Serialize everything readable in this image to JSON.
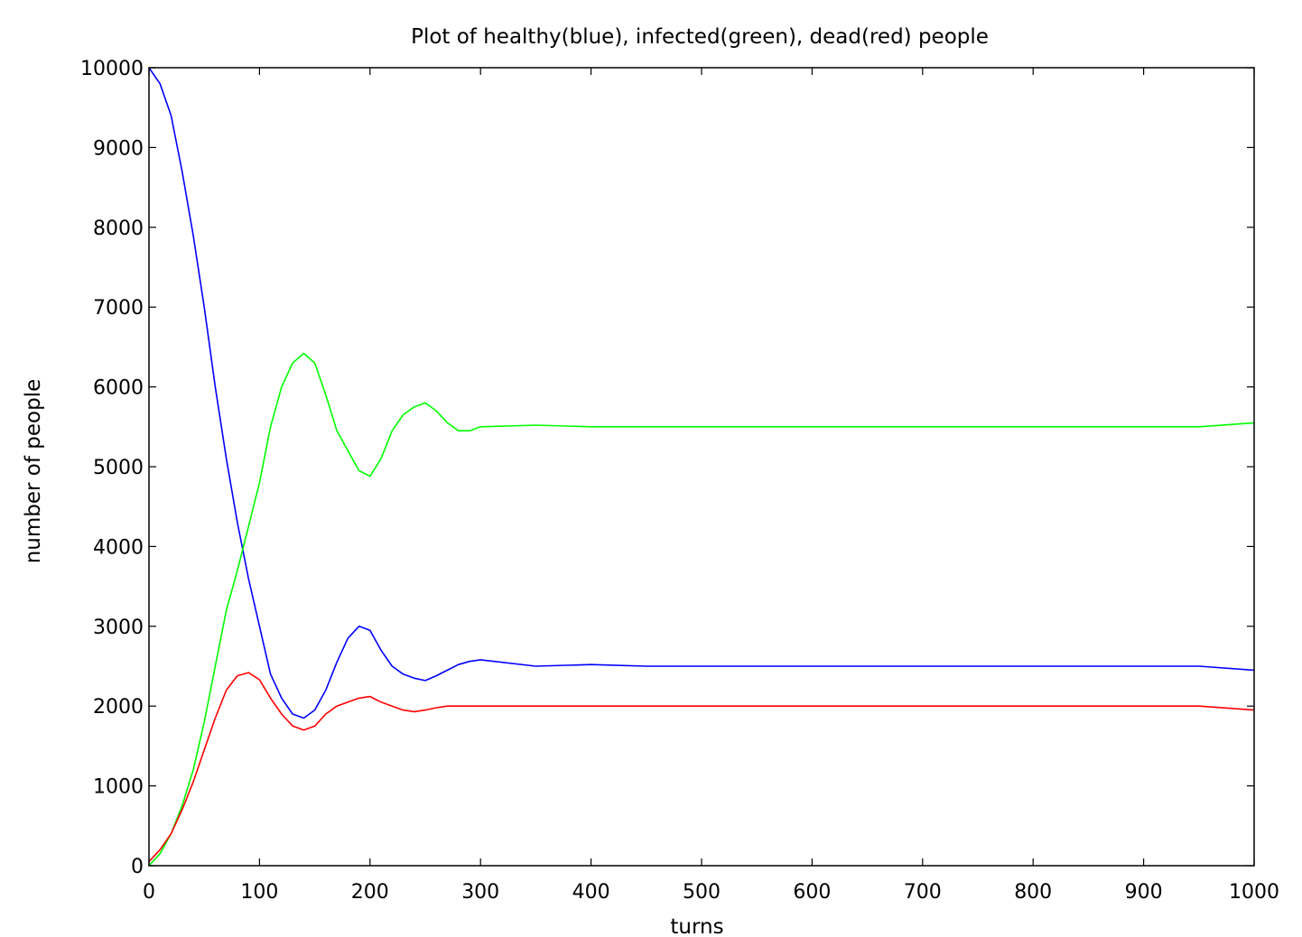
{
  "chart_data": {
    "type": "line",
    "title": "Plot of healthy(blue), infected(green), dead(red) people",
    "xlabel": "turns",
    "ylabel": "number of people",
    "xlim": [
      0,
      1000
    ],
    "ylim": [
      0,
      10000
    ],
    "xticks": [
      0,
      100,
      200,
      300,
      400,
      500,
      600,
      700,
      800,
      900,
      1000
    ],
    "yticks": [
      0,
      1000,
      2000,
      3000,
      4000,
      5000,
      6000,
      7000,
      8000,
      9000,
      10000
    ],
    "grid": false,
    "legend": "none",
    "series": [
      {
        "color": "#0000ff",
        "x": [
          0,
          10,
          20,
          30,
          40,
          50,
          60,
          70,
          80,
          90,
          100,
          110,
          120,
          130,
          140,
          150,
          160,
          170,
          180,
          190,
          200,
          210,
          220,
          230,
          240,
          250,
          260,
          270,
          280,
          290,
          300,
          350,
          400,
          450,
          500,
          550,
          600,
          650,
          700,
          750,
          800,
          850,
          900,
          950,
          1000
        ],
        "y": [
          10000,
          9800,
          9400,
          8700,
          7900,
          7000,
          6000,
          5100,
          4300,
          3600,
          3000,
          2400,
          2100,
          1900,
          1850,
          1950,
          2200,
          2550,
          2850,
          3000,
          2950,
          2700,
          2500,
          2400,
          2350,
          2320,
          2380,
          2450,
          2520,
          2560,
          2580,
          2500,
          2520,
          2500,
          2500,
          2500,
          2500,
          2500,
          2500,
          2500,
          2500,
          2500,
          2500,
          2500,
          2450
        ]
      },
      {
        "color": "#00ff00",
        "x": [
          0,
          10,
          20,
          30,
          40,
          50,
          60,
          70,
          80,
          90,
          100,
          110,
          120,
          130,
          140,
          150,
          160,
          170,
          180,
          190,
          200,
          210,
          220,
          230,
          240,
          250,
          260,
          270,
          280,
          290,
          300,
          350,
          400,
          450,
          500,
          550,
          600,
          650,
          700,
          750,
          800,
          850,
          900,
          950,
          1000
        ],
        "y": [
          0,
          150,
          400,
          750,
          1200,
          1800,
          2500,
          3200,
          3700,
          4250,
          4800,
          5500,
          6000,
          6300,
          6420,
          6300,
          5900,
          5450,
          5200,
          4950,
          4880,
          5100,
          5450,
          5650,
          5750,
          5800,
          5700,
          5550,
          5450,
          5450,
          5500,
          5520,
          5500,
          5500,
          5500,
          5500,
          5500,
          5500,
          5500,
          5500,
          5500,
          5500,
          5500,
          5500,
          5550
        ]
      },
      {
        "color": "#ff0000",
        "x": [
          0,
          10,
          20,
          30,
          40,
          50,
          60,
          70,
          80,
          90,
          100,
          110,
          120,
          130,
          140,
          150,
          160,
          170,
          180,
          190,
          200,
          210,
          220,
          230,
          240,
          250,
          260,
          270,
          280,
          290,
          300,
          350,
          400,
          450,
          500,
          550,
          600,
          650,
          700,
          750,
          800,
          850,
          900,
          950,
          1000
        ],
        "y": [
          50,
          200,
          400,
          700,
          1050,
          1450,
          1850,
          2200,
          2380,
          2420,
          2330,
          2100,
          1900,
          1750,
          1700,
          1750,
          1900,
          2000,
          2050,
          2100,
          2120,
          2050,
          2000,
          1950,
          1930,
          1950,
          1980,
          2000,
          2000,
          2000,
          2000,
          2000,
          2000,
          2000,
          2000,
          2000,
          2000,
          2000,
          2000,
          2000,
          2000,
          2000,
          2000,
          2000,
          1950
        ]
      }
    ]
  }
}
